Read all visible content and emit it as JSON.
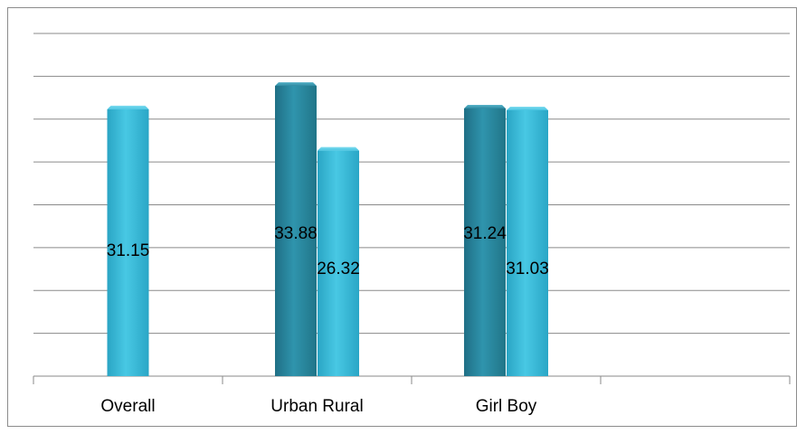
{
  "chart_data": {
    "type": "bar",
    "categories": [
      "Overall",
      "Urban Rural",
      "Girl Boy",
      ""
    ],
    "bars": [
      {
        "category": "Overall",
        "value": 31.15,
        "label": "31.15",
        "color": "#3bbad8"
      },
      {
        "category": "Urban Rural",
        "value": 33.88,
        "label": "33.88",
        "color": "#2a8ea6"
      },
      {
        "category": "Urban Rural",
        "value": 26.32,
        "label": "26.32",
        "color": "#3bbad8"
      },
      {
        "category": "Girl Boy",
        "value": 31.24,
        "label": "31.24",
        "color": "#2a8ea6"
      },
      {
        "category": "Girl Boy",
        "value": 31.03,
        "label": "31.03",
        "color": "#3bbad8"
      }
    ],
    "ylim": [
      0,
      40
    ],
    "grid": true,
    "title": "",
    "xlabel": "",
    "ylabel": ""
  }
}
